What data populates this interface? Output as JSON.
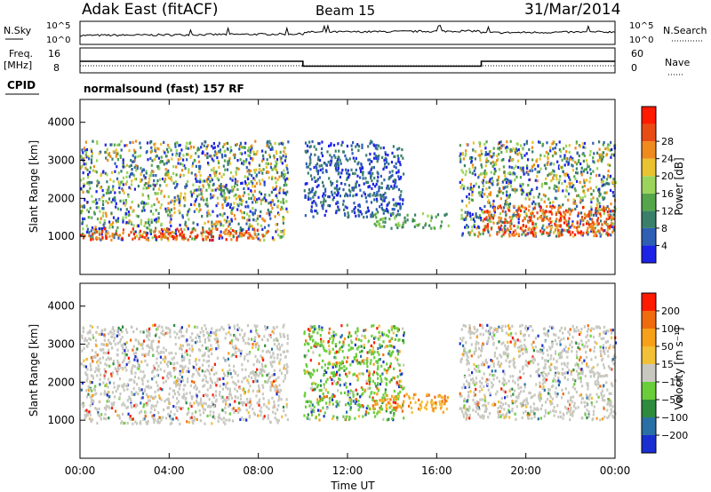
{
  "header": {
    "radar": "Adak East (fitACF)",
    "beam": "Beam 15",
    "date": "31/Mar/2014"
  },
  "top_panels": {
    "nsky_label": "N.Sky",
    "nsearch_label": "N.Search",
    "noise_ticks": [
      "10^5",
      "10^0"
    ],
    "freq_label": "Freq.",
    "freq_unit": "[MHz]",
    "freq_ticks": [
      "16",
      "8"
    ],
    "nave_label": "Nave",
    "nave_ticks": [
      "60",
      "0"
    ],
    "cpid_label": "CPID",
    "cpid_text": "normalsound (fast) 157 RF"
  },
  "chart_data": {
    "type": "heatmap",
    "x_axis": {
      "label": "Time UT",
      "range": [
        "00:00",
        "24:00"
      ],
      "tick_labels": [
        "00:00",
        "04:00",
        "08:00",
        "12:00",
        "16:00",
        "20:00",
        "00:00"
      ]
    },
    "y_axis": {
      "label": "Slant Range [km]",
      "range": [
        0,
        4600
      ],
      "ticks": [
        1000,
        2000,
        3000,
        4000
      ]
    },
    "panels": [
      {
        "name": "power",
        "colorbar_label": "Power [dB]",
        "colorbar_ticks": [
          "4",
          "8",
          "12",
          "16",
          "20",
          "24",
          "28"
        ],
        "colors": [
          "#1c23e6",
          "#2e5fb5",
          "#3a7f6a",
          "#55a64a",
          "#9ad45a",
          "#e8c22f",
          "#ef8a1e",
          "#e94b14",
          "#ff1a00"
        ],
        "regions": [
          {
            "start_h": 0.0,
            "end_h": 9.3,
            "range_min": 900,
            "range_max": 3500,
            "level": "mixed"
          },
          {
            "start_h": 0.0,
            "end_h": 8.5,
            "range_min": 900,
            "range_max": 1200,
            "level": "high"
          },
          {
            "start_h": 10.0,
            "end_h": 14.5,
            "range_min": 1500,
            "range_max": 3500,
            "level": "sparse"
          },
          {
            "start_h": 13.0,
            "end_h": 16.5,
            "range_min": 1200,
            "range_max": 1600,
            "level": "medium"
          },
          {
            "start_h": 17.0,
            "end_h": 24.0,
            "range_min": 1000,
            "range_max": 3500,
            "level": "mixed"
          },
          {
            "start_h": 18.0,
            "end_h": 24.0,
            "range_min": 1000,
            "range_max": 1800,
            "level": "high"
          }
        ]
      },
      {
        "name": "velocity",
        "colorbar_label": "Velocity [m s⁻¹]",
        "colorbar_ticks": [
          "200",
          "100",
          "50",
          "15",
          "−15",
          "−50",
          "−100",
          "−200"
        ],
        "colors": [
          "#1a2fd1",
          "#2a6fa5",
          "#2e8b3e",
          "#6acd3a",
          "#c8c8c0",
          "#f2c037",
          "#f7a01a",
          "#f06a0e",
          "#ff1a00"
        ],
        "regions": [
          {
            "start_h": 0.0,
            "end_h": 9.3,
            "range_min": 900,
            "range_max": 3500,
            "level": "ground"
          },
          {
            "start_h": 10.0,
            "end_h": 14.5,
            "range_min": 1000,
            "range_max": 3500,
            "level": "sparse"
          },
          {
            "start_h": 13.0,
            "end_h": 16.5,
            "range_min": 1200,
            "range_max": 1700,
            "level": "negative"
          },
          {
            "start_h": 17.0,
            "end_h": 24.0,
            "range_min": 1000,
            "range_max": 3500,
            "level": "ground"
          }
        ]
      }
    ],
    "frequency_series_mhz": [
      {
        "start_h": 0.0,
        "end_h": 10.0,
        "value": 12
      },
      {
        "start_h": 10.0,
        "end_h": 18.0,
        "value": 10
      },
      {
        "start_h": 18.0,
        "end_h": 24.0,
        "value": 12
      }
    ]
  }
}
